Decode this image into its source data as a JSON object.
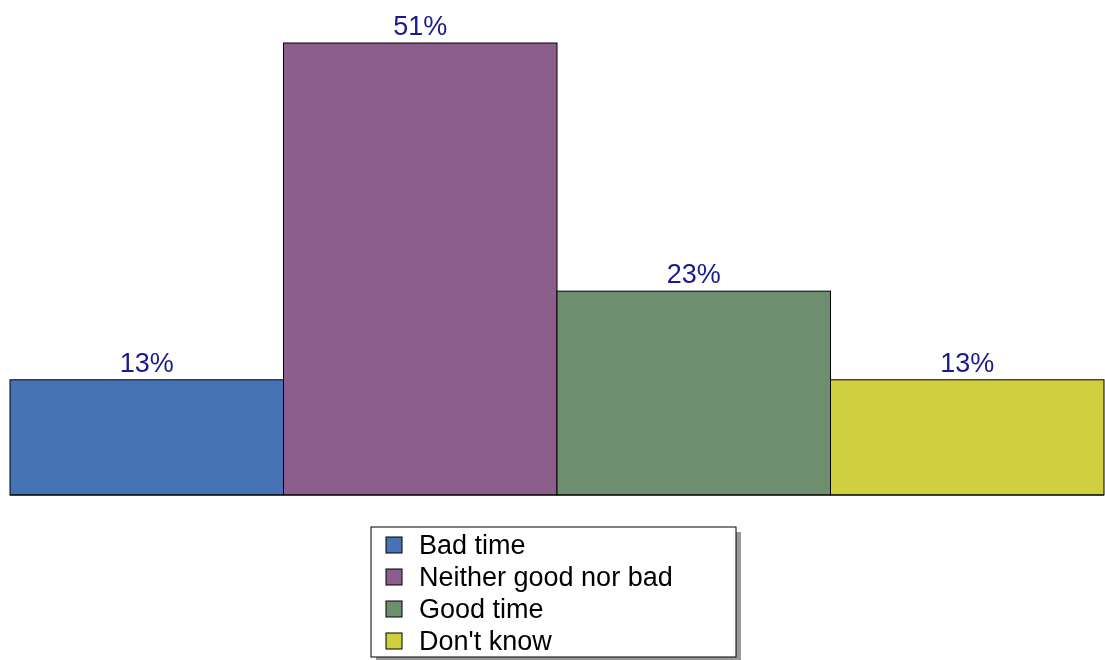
{
  "chart_data": {
    "type": "bar",
    "categories": [
      null
    ],
    "series": [
      {
        "name": "Bad time",
        "color": "#4573b5",
        "values": [
          13
        ],
        "value_labels": [
          "13%"
        ]
      },
      {
        "name": "Neither good nor bad",
        "color": "#8b5e8c",
        "values": [
          51
        ],
        "value_labels": [
          "51%"
        ]
      },
      {
        "name": "Good time",
        "color": "#6e8f6f",
        "values": [
          23
        ],
        "value_labels": [
          "23%"
        ]
      },
      {
        "name": "Don't know",
        "color": "#d0cf40",
        "values": [
          13
        ],
        "value_labels": [
          "13%"
        ]
      }
    ],
    "legend": "bottom",
    "grid": false
  }
}
